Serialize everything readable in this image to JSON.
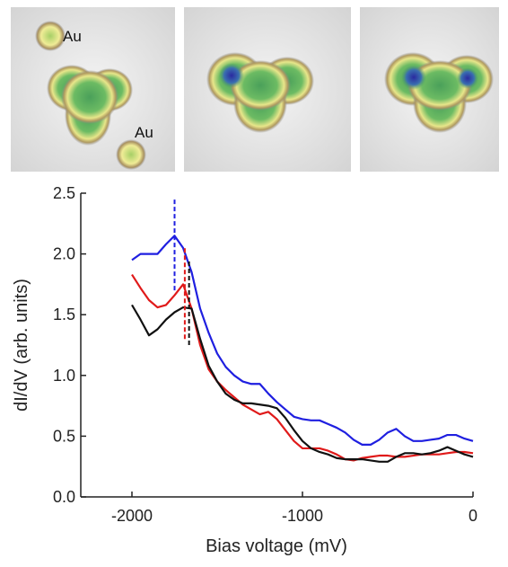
{
  "chart_data": {
    "type": "line",
    "annotations": [
      "Au",
      "Au"
    ],
    "xlabel": "Bias voltage (mV)",
    "ylabel": "dI/dV (arb. units)",
    "xlim": [
      -2300,
      0
    ],
    "ylim": [
      0,
      2.5
    ],
    "xticks": [
      -2000,
      -1000,
      0
    ],
    "yticks": [
      {
        "value": 0,
        "label": "0.0"
      },
      {
        "value": 0.5,
        "label": "0.5"
      },
      {
        "value": 1,
        "label": "1.0"
      },
      {
        "value": 1.5,
        "label": "1.5"
      },
      {
        "value": 2,
        "label": "2.0"
      },
      {
        "value": 2.5,
        "label": "2.5"
      }
    ],
    "x": [
      -2000,
      -1950,
      -1900,
      -1850,
      -1800,
      -1750,
      -1700,
      -1650,
      -1600,
      -1550,
      -1500,
      -1450,
      -1400,
      -1350,
      -1300,
      -1250,
      -1200,
      -1150,
      -1100,
      -1050,
      -1000,
      -950,
      -900,
      -850,
      -800,
      -750,
      -700,
      -650,
      -600,
      -550,
      -500,
      -450,
      -400,
      -350,
      -300,
      -250,
      -200,
      -150,
      -100,
      -50,
      0
    ],
    "series": [
      {
        "color": "#1f1fe0",
        "values": [
          1.95,
          2.0,
          2.0,
          2.0,
          2.08,
          2.15,
          2.05,
          1.85,
          1.55,
          1.35,
          1.18,
          1.07,
          1.0,
          0.95,
          0.93,
          0.93,
          0.85,
          0.78,
          0.72,
          0.66,
          0.64,
          0.63,
          0.63,
          0.6,
          0.57,
          0.53,
          0.47,
          0.43,
          0.43,
          0.47,
          0.53,
          0.56,
          0.5,
          0.46,
          0.46,
          0.47,
          0.48,
          0.51,
          0.51,
          0.48,
          0.46
        ]
      },
      {
        "color": "#e01a1a",
        "values": [
          1.83,
          1.72,
          1.62,
          1.56,
          1.58,
          1.66,
          1.75,
          1.55,
          1.25,
          1.05,
          0.95,
          0.88,
          0.82,
          0.76,
          0.72,
          0.68,
          0.7,
          0.64,
          0.55,
          0.46,
          0.4,
          0.4,
          0.4,
          0.38,
          0.35,
          0.31,
          0.3,
          0.32,
          0.33,
          0.34,
          0.34,
          0.33,
          0.33,
          0.34,
          0.35,
          0.35,
          0.35,
          0.36,
          0.37,
          0.37,
          0.36
        ]
      },
      {
        "color": "#111111",
        "values": [
          1.58,
          1.46,
          1.33,
          1.38,
          1.46,
          1.52,
          1.56,
          1.55,
          1.3,
          1.08,
          0.95,
          0.85,
          0.8,
          0.77,
          0.77,
          0.76,
          0.75,
          0.73,
          0.65,
          0.55,
          0.46,
          0.4,
          0.37,
          0.35,
          0.32,
          0.31,
          0.31,
          0.31,
          0.3,
          0.29,
          0.29,
          0.33,
          0.36,
          0.36,
          0.35,
          0.36,
          0.38,
          0.41,
          0.38,
          0.35,
          0.33
        ]
      }
    ],
    "markers": [
      {
        "x": -1750,
        "y": [
          1.7,
          2.45
        ],
        "color": "#1f1fe0"
      },
      {
        "x": -1690,
        "y": [
          1.3,
          2.05
        ],
        "color": "#e01a1a"
      },
      {
        "x": -1665,
        "y": [
          1.25,
          1.95
        ],
        "color": "#111111"
      }
    ]
  }
}
